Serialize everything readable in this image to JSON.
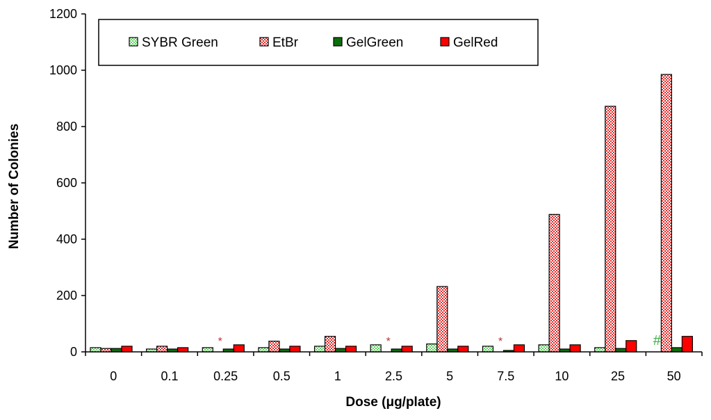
{
  "chart_data": {
    "type": "bar",
    "categories": [
      "0",
      "0.1",
      "0.25",
      "0.5",
      "1",
      "2.5",
      "5",
      "7.5",
      "10",
      "25",
      "50"
    ],
    "series": [
      {
        "name": "SYBR Green",
        "color": "#7ee87e",
        "pattern": "dots-light",
        "values": [
          15,
          10,
          15,
          15,
          20,
          25,
          28,
          20,
          25,
          15,
          0
        ]
      },
      {
        "name": "EtBr",
        "color": "#e84a4a",
        "pattern": "dots-dense",
        "values": [
          12,
          20,
          0,
          38,
          55,
          0,
          232,
          0,
          488,
          872,
          985
        ]
      },
      {
        "name": "GelGreen",
        "color": "#0b6e0b",
        "pattern": "solid",
        "values": [
          12,
          10,
          10,
          10,
          12,
          10,
          10,
          5,
          10,
          12,
          15
        ]
      },
      {
        "name": "GelRed",
        "color": "#ff0000",
        "pattern": "solid",
        "values": [
          20,
          15,
          25,
          20,
          20,
          20,
          20,
          25,
          25,
          40,
          55
        ]
      }
    ],
    "ylim": [
      0,
      1200
    ],
    "yticks": [
      "0",
      "200",
      "400",
      "600",
      "800",
      "1000",
      "1200"
    ],
    "xlabel": "Dose (μg/plate)",
    "ylabel": "Number of Colonies",
    "legend_position": "top",
    "annotations": [
      {
        "text": "*",
        "category": "0.25",
        "color": "#c03030"
      },
      {
        "text": "*",
        "category": "2.5",
        "color": "#c03030"
      },
      {
        "text": "*",
        "category": "7.5",
        "color": "#c03030"
      },
      {
        "text": "#",
        "category": "50",
        "color": "#3cb043"
      }
    ]
  }
}
